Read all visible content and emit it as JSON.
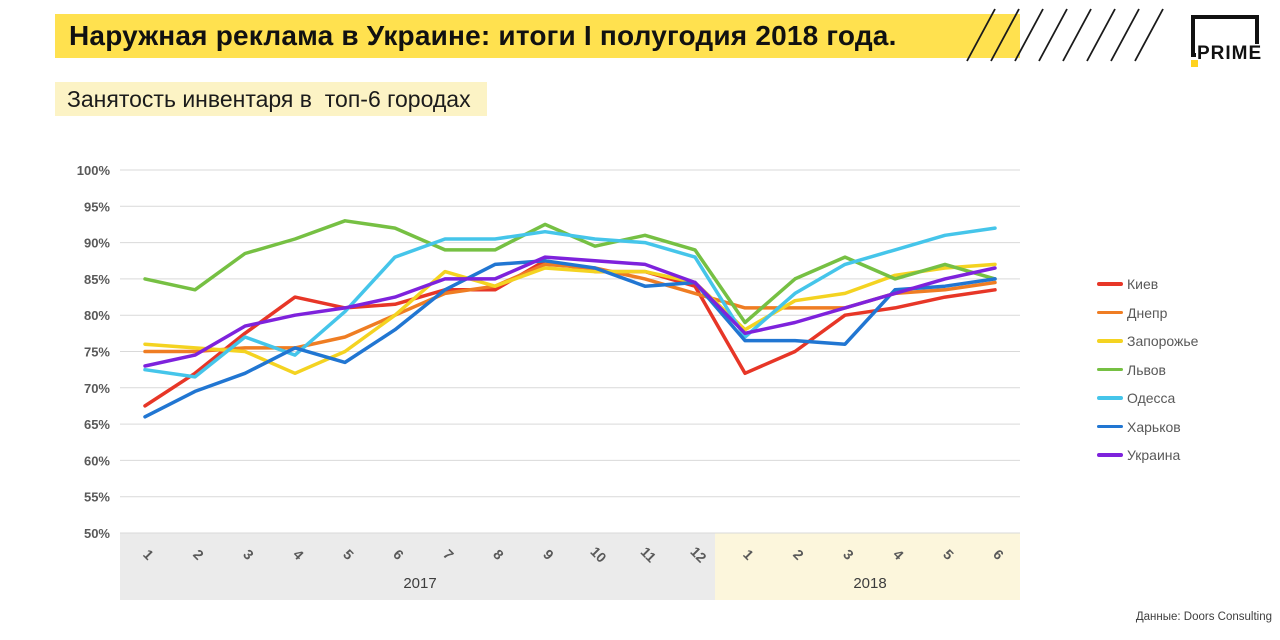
{
  "header": {
    "title": "Наружная реклама в Украине: итоги I полугодия 2018 года.",
    "subtitle": "Занятость инвентаря в  топ-6 городах"
  },
  "logo": {
    "text": "PRIME"
  },
  "source": "Данные: Doors Consulting",
  "colors": {
    "title_band": "#FFE14F",
    "subtitle_band": "#FCF3C5",
    "axis_band_2017": "#EBEBEB",
    "axis_band_2018": "#FCF6DC",
    "gridline": "#D9D9D9",
    "tick_text": "#595959",
    "hatch_line": "#1a1a1a",
    "logo_accent": "#FFD21E"
  },
  "chart_data": {
    "type": "line",
    "title": "Занятость инвентаря в топ-6 городах",
    "x_categories": [
      "1",
      "2",
      "3",
      "4",
      "5",
      "6",
      "7",
      "8",
      "9",
      "10",
      "11",
      "12",
      "1",
      "2",
      "3",
      "4",
      "5",
      "6"
    ],
    "year_groups": [
      {
        "label": "2017",
        "start_index": 0,
        "months": 12
      },
      {
        "label": "2018",
        "start_index": 12,
        "months": 6
      }
    ],
    "ylim": [
      50,
      100
    ],
    "ytick_step": 5,
    "ytick_labels": [
      "50%",
      "55%",
      "60%",
      "65%",
      "70%",
      "75%",
      "80%",
      "85%",
      "90%",
      "95%",
      "100%"
    ],
    "grid": true,
    "legend_position": "right",
    "series": [
      {
        "name": "Киев",
        "color": "#E73627",
        "values": [
          67.5,
          72,
          77.5,
          82.5,
          81,
          81.5,
          83.5,
          83.5,
          87.5,
          86,
          86,
          84,
          72,
          75,
          80,
          81,
          82.5,
          83.5
        ]
      },
      {
        "name": "Днепр",
        "color": "#EF7D23",
        "values": [
          75,
          75,
          75.5,
          75.5,
          77,
          80,
          83,
          84,
          87,
          86.5,
          85,
          83,
          81,
          81,
          81,
          83,
          83.5,
          84.5
        ]
      },
      {
        "name": "Запорожье",
        "color": "#F4D321",
        "values": [
          76,
          75.5,
          75,
          72,
          75,
          80,
          86,
          84,
          86.5,
          86,
          86,
          84.5,
          78,
          82,
          83,
          85.5,
          86.5,
          87
        ]
      },
      {
        "name": "Львов",
        "color": "#76C043",
        "values": [
          85,
          83.5,
          88.5,
          90.5,
          93,
          92,
          89,
          89,
          92.5,
          89.5,
          91,
          89,
          79,
          85,
          88,
          85,
          87,
          85
        ]
      },
      {
        "name": "Одесса",
        "color": "#45C5EA",
        "values": [
          72.5,
          71.5,
          77,
          74.5,
          80.5,
          88,
          90.5,
          90.5,
          91.5,
          90.5,
          90,
          88,
          77,
          83,
          87,
          89,
          91,
          92
        ]
      },
      {
        "name": "Харьков",
        "color": "#2176D2",
        "values": [
          66,
          69.5,
          72,
          75.5,
          73.5,
          78,
          83.5,
          87,
          87.5,
          86.5,
          84,
          84.5,
          76.5,
          76.5,
          76,
          83.5,
          84,
          85
        ]
      },
      {
        "name": "Украина",
        "color": "#7E22DC",
        "values": [
          73,
          74.5,
          78.5,
          80,
          81,
          82.5,
          85,
          85,
          88,
          87.5,
          87,
          84.5,
          77.5,
          79,
          81,
          83,
          85,
          86.5
        ]
      }
    ]
  }
}
